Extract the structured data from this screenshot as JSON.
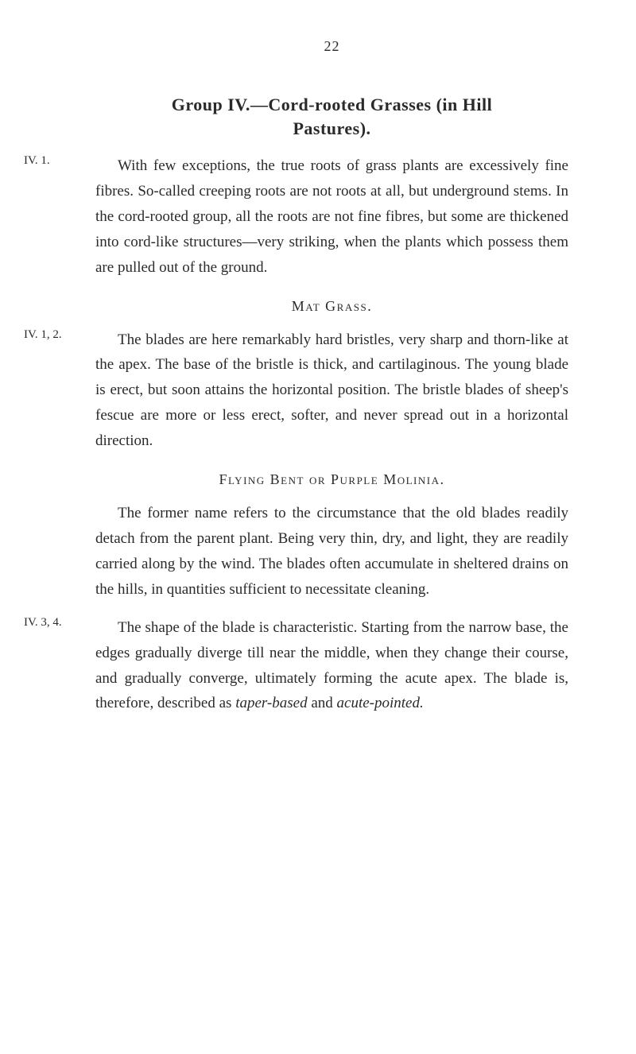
{
  "pageNumber": "22",
  "groupTitle": "Group IV.—Cord-rooted Grasses (in Hill",
  "groupSubtitle": "Pastures).",
  "marginNotes": {
    "note1": "IV. 1.",
    "note2": "IV. 1, 2.",
    "note3": "IV. 3, 4."
  },
  "paragraphs": {
    "p1": "With few exceptions, the true roots of grass plants are excessively fine fibres. So-called creeping roots are not roots at all, but underground stems. In the cord-rooted group, all the roots are not fine fibres, but some are thickened into cord-like structures—very striking, when the plants which possess them are pulled out of the ground.",
    "p2": "The blades are here remarkably hard bristles, very sharp and thorn-like at the apex. The base of the bristle is thick, and cartilaginous. The young blade is erect, but soon attains the horizontal position. The bristle blades of sheep's fescue are more or less erect, softer, and never spread out in a horizontal direction.",
    "p3": "The former name refers to the circumstance that the old blades readily detach from the parent plant. Being very thin, dry, and light, they are readily carried along by the wind. The blades often accumulate in sheltered drains on the hills, in quantities sufficient to necessitate cleaning.",
    "p4_part1": "The shape of the blade is characteristic. Starting from the narrow base, the edges gradually diverge till near the middle, when they change their course, and gradually converge, ultimately forming the acute apex. The blade is, therefore, described as ",
    "p4_italic1": "taper-based",
    "p4_part2": " and ",
    "p4_italic2": "acute-pointed.",
    "p4_part3": ""
  },
  "headings": {
    "h1": "Mat Grass.",
    "h2": "Flying Bent or Purple Molinia."
  }
}
